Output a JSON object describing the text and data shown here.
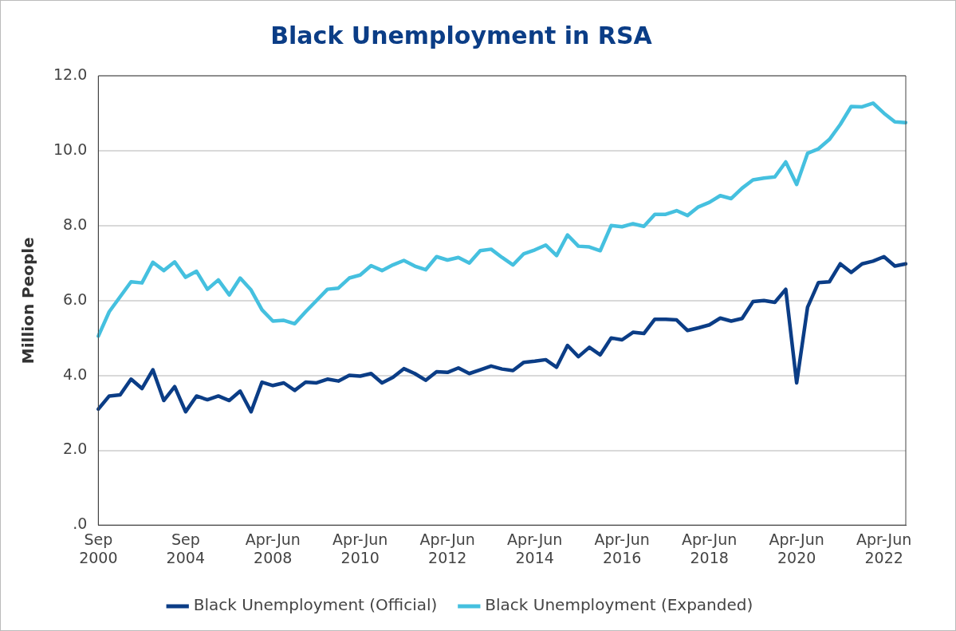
{
  "chart_data": {
    "type": "line",
    "title": "Black Unemployment in RSA",
    "ylabel": "Million People",
    "categories": [
      "Sep 2000",
      null,
      null,
      null,
      null,
      null,
      null,
      null,
      "Sep 2004",
      null,
      null,
      null,
      null,
      null,
      null,
      null,
      "Apr-Jun 2008",
      null,
      null,
      null,
      null,
      null,
      null,
      null,
      "Apr-Jun 2010",
      null,
      null,
      null,
      null,
      null,
      null,
      null,
      "Apr-Jun 2012",
      null,
      null,
      null,
      null,
      null,
      null,
      null,
      "Apr-Jun 2014",
      null,
      null,
      null,
      null,
      null,
      null,
      null,
      "Apr-Jun 2016",
      null,
      null,
      null,
      null,
      null,
      null,
      null,
      "Apr-Jun 2018",
      null,
      null,
      null,
      null,
      null,
      null,
      null,
      "Apr-Jun 2020",
      null,
      null,
      null,
      null,
      null,
      null,
      null,
      "Apr-Jun 2022",
      null,
      null
    ],
    "series": [
      {
        "name": "Black Unemployment (Official)",
        "color": "#0b3d86",
        "values": [
          3.1,
          3.45,
          3.48,
          3.9,
          3.65,
          4.15,
          3.33,
          3.7,
          3.03,
          3.45,
          3.35,
          3.45,
          3.33,
          3.58,
          3.03,
          3.82,
          3.73,
          3.8,
          3.6,
          3.82,
          3.8,
          3.9,
          3.85,
          4.0,
          3.98,
          4.05,
          3.8,
          3.95,
          4.18,
          4.05,
          3.87,
          4.1,
          4.08,
          4.2,
          4.05,
          4.15,
          4.25,
          4.17,
          4.13,
          4.35,
          4.38,
          4.42,
          4.22,
          4.8,
          4.5,
          4.75,
          4.55,
          5.0,
          4.95,
          5.15,
          5.12,
          5.5,
          5.5,
          5.48,
          5.2,
          5.27,
          5.35,
          5.53,
          5.45,
          5.52,
          5.97,
          6.0,
          5.95,
          6.3,
          3.8,
          5.82,
          6.48,
          6.5,
          6.98,
          6.75,
          6.98,
          7.05,
          7.17,
          6.92,
          6.98
        ]
      },
      {
        "name": "Black Unemployment (Expanded)",
        "color": "#45c0df",
        "values": [
          5.05,
          5.7,
          6.1,
          6.5,
          6.47,
          7.02,
          6.8,
          7.03,
          6.62,
          6.78,
          6.3,
          6.55,
          6.15,
          6.6,
          6.28,
          5.75,
          5.45,
          5.47,
          5.38,
          5.7,
          6.0,
          6.3,
          6.33,
          6.6,
          6.68,
          6.93,
          6.8,
          6.95,
          7.07,
          6.92,
          6.82,
          7.17,
          7.08,
          7.15,
          7.0,
          7.33,
          7.37,
          7.15,
          6.95,
          7.25,
          7.35,
          7.48,
          7.2,
          7.75,
          7.45,
          7.43,
          7.33,
          8.0,
          7.97,
          8.05,
          7.98,
          8.3,
          8.3,
          8.4,
          8.27,
          8.5,
          8.62,
          8.8,
          8.72,
          9.0,
          9.22,
          9.27,
          9.3,
          9.7,
          9.1,
          9.93,
          10.05,
          10.3,
          10.7,
          11.18,
          11.17,
          11.27,
          11.0,
          10.77,
          10.75
        ]
      }
    ],
    "ylim": [
      0,
      12
    ],
    "yticks": [
      {
        "value": 0,
        "label": ".0"
      },
      {
        "value": 2,
        "label": "2.0"
      },
      {
        "value": 4,
        "label": "4.0"
      },
      {
        "value": 6,
        "label": "6.0"
      },
      {
        "value": 8,
        "label": "8.0"
      },
      {
        "value": 10,
        "label": "10.0"
      },
      {
        "value": 12,
        "label": "12.0"
      }
    ],
    "grid": "y",
    "legend": "bottom",
    "marker": "none",
    "line_style": "solid"
  }
}
